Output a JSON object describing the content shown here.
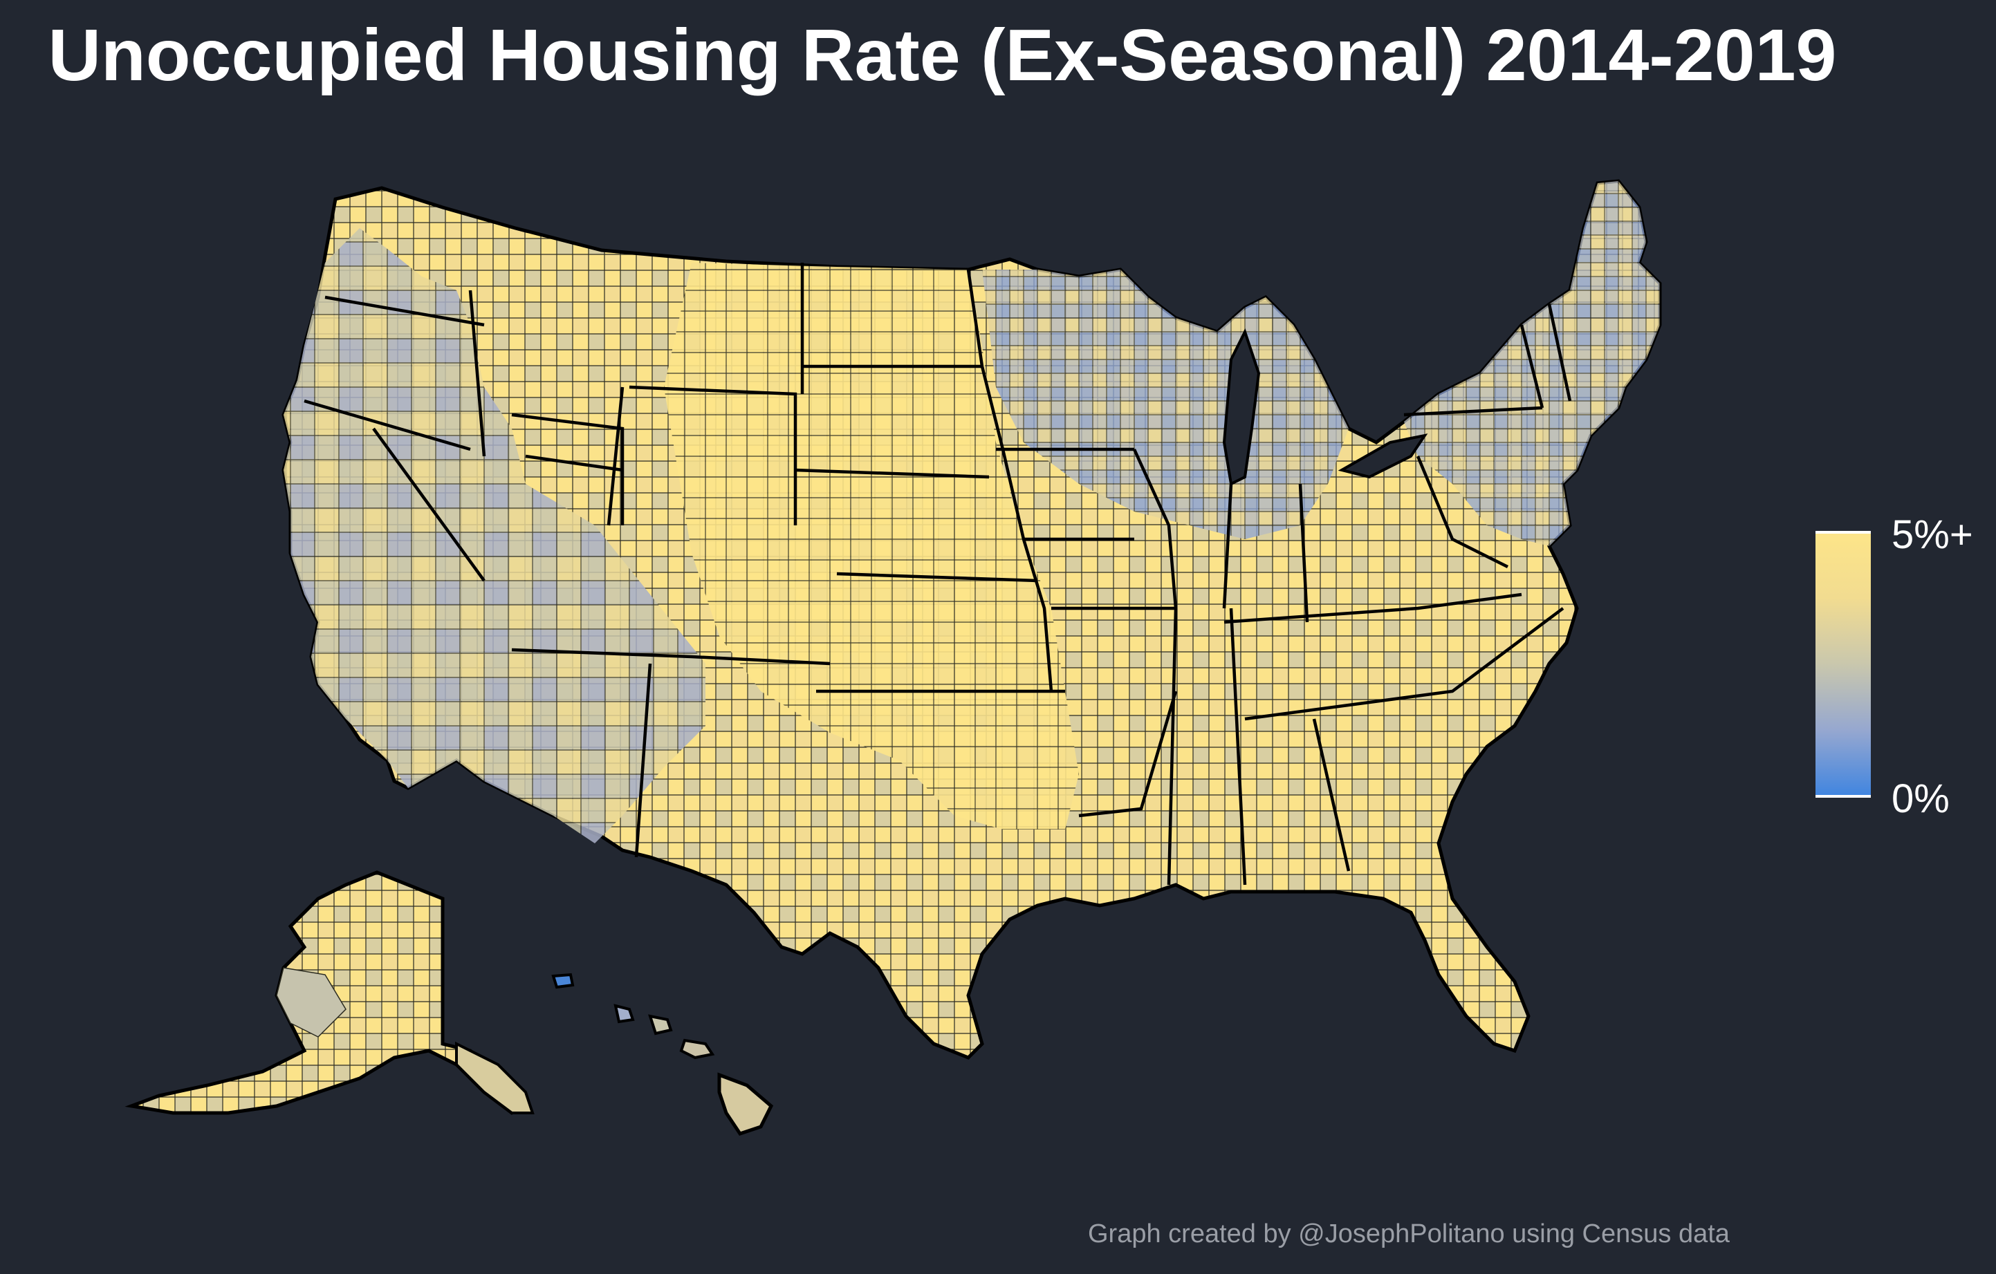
{
  "title": "Unoccupied Housing Rate (Ex-Seasonal) 2014-2019",
  "legend": {
    "max_label": "5%+",
    "min_label": "0%",
    "colors": [
      "#fde589",
      "#f2dc90",
      "#c9c7ad",
      "#95a7d0",
      "#3e84e0"
    ]
  },
  "credit": "Graph created by @JosephPolitano using Census data",
  "map": {
    "background": "#222731",
    "border_color": "#000000",
    "regions": [
      "contiguous-us",
      "alaska",
      "hawaii"
    ]
  }
}
